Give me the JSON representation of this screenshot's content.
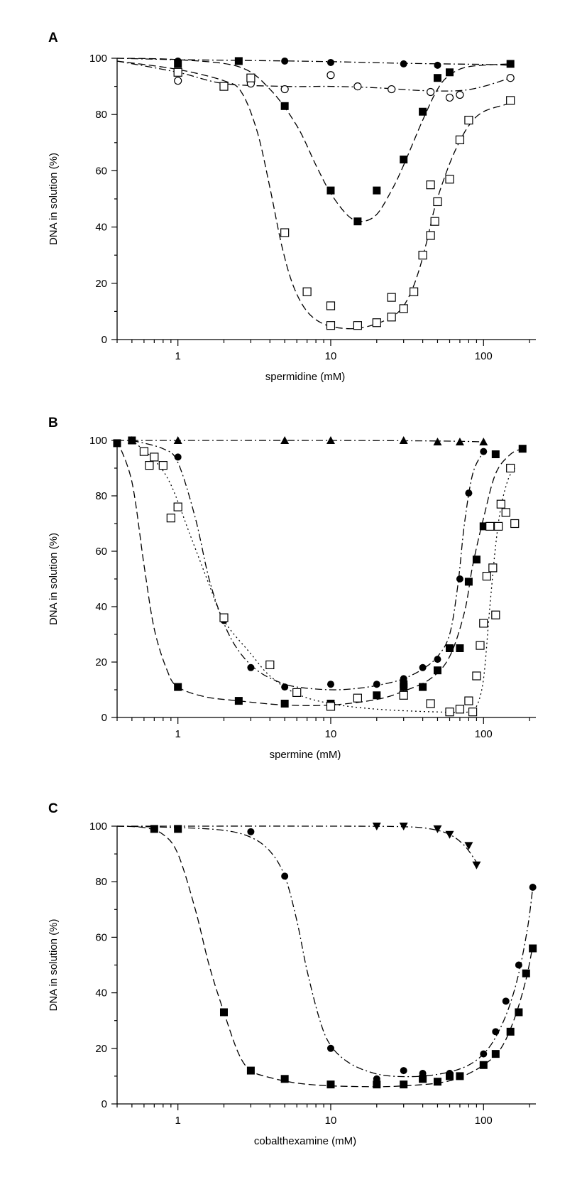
{
  "chart_data": [
    {
      "type": "scatter",
      "panel_label": "A",
      "xlabel": "spermidine (mM)",
      "ylabel": "DNA in solution (%)",
      "x_scale": "log",
      "xlim": [
        0.4,
        220
      ],
      "ylim": [
        0,
        100
      ],
      "x_ticks": [
        1,
        10,
        100
      ],
      "y_ticks": [
        0,
        20,
        40,
        60,
        80,
        100
      ],
      "grid": false,
      "series": [
        {
          "marker": "filled-circle",
          "line": "dashdot",
          "x": [
            1,
            2.5,
            5,
            10,
            30,
            50
          ],
          "y": [
            99,
            99,
            99,
            98.5,
            98,
            97.5
          ],
          "curve": [
            [
              0.4,
              100
            ],
            [
              1,
              99.5
            ],
            [
              3,
              99.2
            ],
            [
              10,
              98.8
            ],
            [
              30,
              98.2
            ],
            [
              100,
              97.8
            ],
            [
              150,
              97.5
            ]
          ]
        },
        {
          "marker": "open-circle",
          "line": "dashdot",
          "x": [
            1,
            3,
            5,
            10,
            15,
            25,
            45,
            60,
            70,
            150
          ],
          "y": [
            92,
            91,
            89,
            94,
            90,
            89,
            88,
            86,
            87,
            93
          ],
          "curve": [
            [
              0.4,
              99
            ],
            [
              1,
              95
            ],
            [
              2,
              91
            ],
            [
              5,
              90
            ],
            [
              10,
              90
            ],
            [
              20,
              89.5
            ],
            [
              40,
              88.5
            ],
            [
              70,
              88.5
            ],
            [
              100,
              90
            ],
            [
              150,
              93
            ]
          ]
        },
        {
          "marker": "filled-square",
          "line": "dashed",
          "x": [
            1,
            2.5,
            5,
            10,
            15,
            20,
            30,
            40,
            50,
            60,
            150
          ],
          "y": [
            98,
            99,
            83,
            53,
            42,
            53,
            64,
            81,
            93,
            95,
            98
          ],
          "curve": [
            [
              0.4,
              100
            ],
            [
              1,
              99.5
            ],
            [
              2.5,
              97
            ],
            [
              4,
              89
            ],
            [
              6,
              76
            ],
            [
              8,
              62
            ],
            [
              10,
              52
            ],
            [
              13,
              44
            ],
            [
              16,
              42
            ],
            [
              20,
              44.5
            ],
            [
              25,
              53
            ],
            [
              30,
              62
            ],
            [
              40,
              78
            ],
            [
              50,
              89
            ],
            [
              60,
              94
            ],
            [
              80,
              97
            ],
            [
              150,
              98
            ]
          ]
        },
        {
          "marker": "open-square",
          "line": "dashed",
          "x": [
            1,
            2,
            3,
            5,
            7,
            10,
            10,
            15,
            20,
            25,
            25,
            30,
            35,
            40,
            45,
            45,
            48,
            50,
            60,
            70,
            80,
            150
          ],
          "y": [
            95,
            90,
            93,
            38,
            17,
            12,
            5,
            5,
            6,
            8,
            15,
            11,
            17,
            30,
            37,
            55,
            42,
            49,
            57,
            71,
            78,
            85
          ],
          "curve": [
            [
              0.4,
              99
            ],
            [
              1,
              96
            ],
            [
              2,
              92
            ],
            [
              2.6,
              88
            ],
            [
              3.3,
              74
            ],
            [
              4,
              54
            ],
            [
              4.8,
              33
            ],
            [
              5.7,
              19
            ],
            [
              7,
              10
            ],
            [
              9,
              5.5
            ],
            [
              12,
              4
            ],
            [
              16,
              4.2
            ],
            [
              22,
              6.5
            ],
            [
              28,
              10
            ],
            [
              33,
              16
            ],
            [
              38,
              25
            ],
            [
              43,
              36
            ],
            [
              48,
              47
            ],
            [
              55,
              57
            ],
            [
              65,
              67
            ],
            [
              80,
              76
            ],
            [
              100,
              81
            ],
            [
              150,
              84
            ]
          ]
        }
      ]
    },
    {
      "type": "scatter",
      "panel_label": "B",
      "xlabel": "spermine (mM)",
      "ylabel": "DNA in solution (%)",
      "x_scale": "log",
      "xlim": [
        0.4,
        220
      ],
      "ylim": [
        0,
        100
      ],
      "x_ticks": [
        1,
        10,
        100
      ],
      "y_ticks": [
        0,
        20,
        40,
        60,
        80,
        100
      ],
      "grid": false,
      "series": [
        {
          "marker": "filled-triangle-up",
          "line": "dashdot",
          "x": [
            0.5,
            1,
            5,
            10,
            30,
            50,
            70,
            100
          ],
          "y": [
            100,
            100,
            100,
            100,
            100,
            99.5,
            99.5,
            99.5
          ],
          "curve": [
            [
              0.4,
              100
            ],
            [
              1,
              100
            ],
            [
              10,
              100
            ],
            [
              50,
              99.8
            ],
            [
              100,
              99.5
            ]
          ]
        },
        {
          "marker": "filled-circle",
          "line": "dashdot",
          "x": [
            0.5,
            1,
            2,
            3,
            5,
            10,
            20,
            30,
            40,
            50,
            70,
            80,
            100
          ],
          "y": [
            100,
            94,
            35,
            18,
            11,
            12,
            12,
            14,
            18,
            21,
            50,
            81,
            96
          ],
          "curve": [
            [
              0.5,
              100
            ],
            [
              0.8,
              97
            ],
            [
              1,
              92
            ],
            [
              1.3,
              72
            ],
            [
              1.6,
              50
            ],
            [
              2,
              34
            ],
            [
              2.5,
              24
            ],
            [
              3.3,
              17
            ],
            [
              4.5,
              13
            ],
            [
              6,
              11
            ],
            [
              10,
              10
            ],
            [
              15,
              10.5
            ],
            [
              22,
              12
            ],
            [
              30,
              14
            ],
            [
              40,
              17.5
            ],
            [
              50,
              22
            ],
            [
              60,
              30
            ],
            [
              68,
              48
            ],
            [
              75,
              70
            ],
            [
              85,
              88
            ],
            [
              100,
              96
            ]
          ]
        },
        {
          "marker": "filled-square",
          "line": "dashed",
          "x": [
            0.4,
            0.5,
            1,
            2.5,
            5,
            10,
            20,
            30,
            30,
            40,
            50,
            60,
            70,
            80,
            90,
            100,
            120,
            180
          ],
          "y": [
            99,
            100,
            11,
            6,
            5,
            5,
            8,
            11,
            12,
            11,
            17,
            25,
            25,
            49,
            57,
            69,
            95,
            97
          ],
          "curve": [
            [
              0.4,
              100
            ],
            [
              0.5,
              85
            ],
            [
              0.6,
              55
            ],
            [
              0.7,
              32
            ],
            [
              0.85,
              17
            ],
            [
              1,
              11
            ],
            [
              1.5,
              7.5
            ],
            [
              2.5,
              6
            ],
            [
              5,
              4.5
            ],
            [
              10,
              4.5
            ],
            [
              20,
              6.5
            ],
            [
              30,
              9.5
            ],
            [
              45,
              14
            ],
            [
              60,
              22
            ],
            [
              75,
              38
            ],
            [
              85,
              55
            ],
            [
              100,
              72
            ],
            [
              120,
              88
            ],
            [
              150,
              95
            ],
            [
              180,
              97
            ]
          ]
        },
        {
          "marker": "open-square",
          "line": "dotted",
          "x": [
            0.6,
            0.65,
            0.7,
            0.8,
            0.9,
            1,
            2,
            4,
            6,
            10,
            15,
            30,
            45,
            60,
            70,
            80,
            85,
            90,
            95,
            100,
            105,
            110,
            115,
            120,
            125,
            130,
            140,
            150,
            160
          ],
          "y": [
            96,
            91,
            94,
            91,
            72,
            76,
            36,
            19,
            9,
            4,
            7,
            8,
            5,
            2,
            3,
            6,
            2,
            15,
            26,
            34,
            51,
            69,
            54,
            37,
            69,
            77,
            74,
            90,
            70
          ],
          "curve": [
            [
              0.5,
              100
            ],
            [
              0.7,
              93
            ],
            [
              0.9,
              84
            ],
            [
              1.2,
              66
            ],
            [
              1.6,
              48
            ],
            [
              2,
              35
            ],
            [
              3,
              23
            ],
            [
              4,
              15
            ],
            [
              6,
              8.5
            ],
            [
              10,
              5
            ],
            [
              20,
              3
            ],
            [
              50,
              2
            ],
            [
              80,
              2
            ],
            [
              90,
              4
            ],
            [
              100,
              14
            ],
            [
              110,
              40
            ],
            [
              120,
              62
            ],
            [
              130,
              76
            ],
            [
              145,
              86
            ],
            [
              160,
              90
            ]
          ]
        }
      ]
    },
    {
      "type": "scatter",
      "panel_label": "C",
      "xlabel": "cobalthexamine (mM)",
      "ylabel": "DNA in solution (%)",
      "x_scale": "log",
      "xlim": [
        0.4,
        220
      ],
      "ylim": [
        0,
        100
      ],
      "x_ticks": [
        1,
        10,
        100
      ],
      "y_ticks": [
        0,
        20,
        40,
        60,
        80,
        100
      ],
      "grid": false,
      "series": [
        {
          "marker": "filled-triangle-down",
          "line": "dashdot",
          "x": [
            20,
            30,
            50,
            60,
            80,
            90
          ],
          "y": [
            100,
            100,
            99,
            97,
            93,
            86
          ],
          "curve": [
            [
              0.4,
              100
            ],
            [
              10,
              100
            ],
            [
              30,
              99.8
            ],
            [
              45,
              99
            ],
            [
              60,
              97
            ],
            [
              75,
              93
            ],
            [
              90,
              87
            ]
          ]
        },
        {
          "marker": "filled-circle",
          "line": "dashdot",
          "x": [
            1,
            3,
            5,
            10,
            20,
            30,
            40,
            60,
            100,
            120,
            140,
            170,
            210
          ],
          "y": [
            99,
            98,
            82,
            20,
            9,
            12,
            11,
            11,
            18,
            26,
            37,
            50,
            78
          ],
          "curve": [
            [
              0.4,
              100
            ],
            [
              1,
              99.5
            ],
            [
              2,
              98.5
            ],
            [
              3,
              96
            ],
            [
              4,
              91
            ],
            [
              5,
              82
            ],
            [
              6,
              66
            ],
            [
              7,
              48
            ],
            [
              8.5,
              30
            ],
            [
              10,
              21
            ],
            [
              13,
              15
            ],
            [
              18,
              11.5
            ],
            [
              25,
              10
            ],
            [
              40,
              10
            ],
            [
              60,
              11.5
            ],
            [
              80,
              14
            ],
            [
              100,
              18
            ],
            [
              120,
              24
            ],
            [
              145,
              34
            ],
            [
              170,
              47
            ],
            [
              195,
              64
            ],
            [
              210,
              78
            ]
          ]
        },
        {
          "marker": "filled-square",
          "line": "dashed",
          "x": [
            0.7,
            1,
            2,
            3,
            5,
            10,
            20,
            30,
            40,
            50,
            60,
            70,
            100,
            120,
            150,
            170,
            190,
            210
          ],
          "y": [
            99,
            99,
            33,
            12,
            9,
            7,
            7,
            7,
            9,
            8,
            10,
            10,
            14,
            18,
            26,
            33,
            47,
            56
          ],
          "curve": [
            [
              0.4,
              100
            ],
            [
              0.6,
              99.5
            ],
            [
              0.8,
              97
            ],
            [
              1,
              90
            ],
            [
              1.3,
              70
            ],
            [
              1.6,
              50
            ],
            [
              2,
              33
            ],
            [
              2.5,
              18
            ],
            [
              3,
              12
            ],
            [
              4,
              9.5
            ],
            [
              6,
              7.5
            ],
            [
              10,
              6.5
            ],
            [
              20,
              6.2
            ],
            [
              30,
              6.5
            ],
            [
              50,
              7.5
            ],
            [
              70,
              9.5
            ],
            [
              100,
              14
            ],
            [
              130,
              20
            ],
            [
              160,
              31
            ],
            [
              190,
              45
            ],
            [
              210,
              57
            ]
          ]
        }
      ]
    }
  ]
}
